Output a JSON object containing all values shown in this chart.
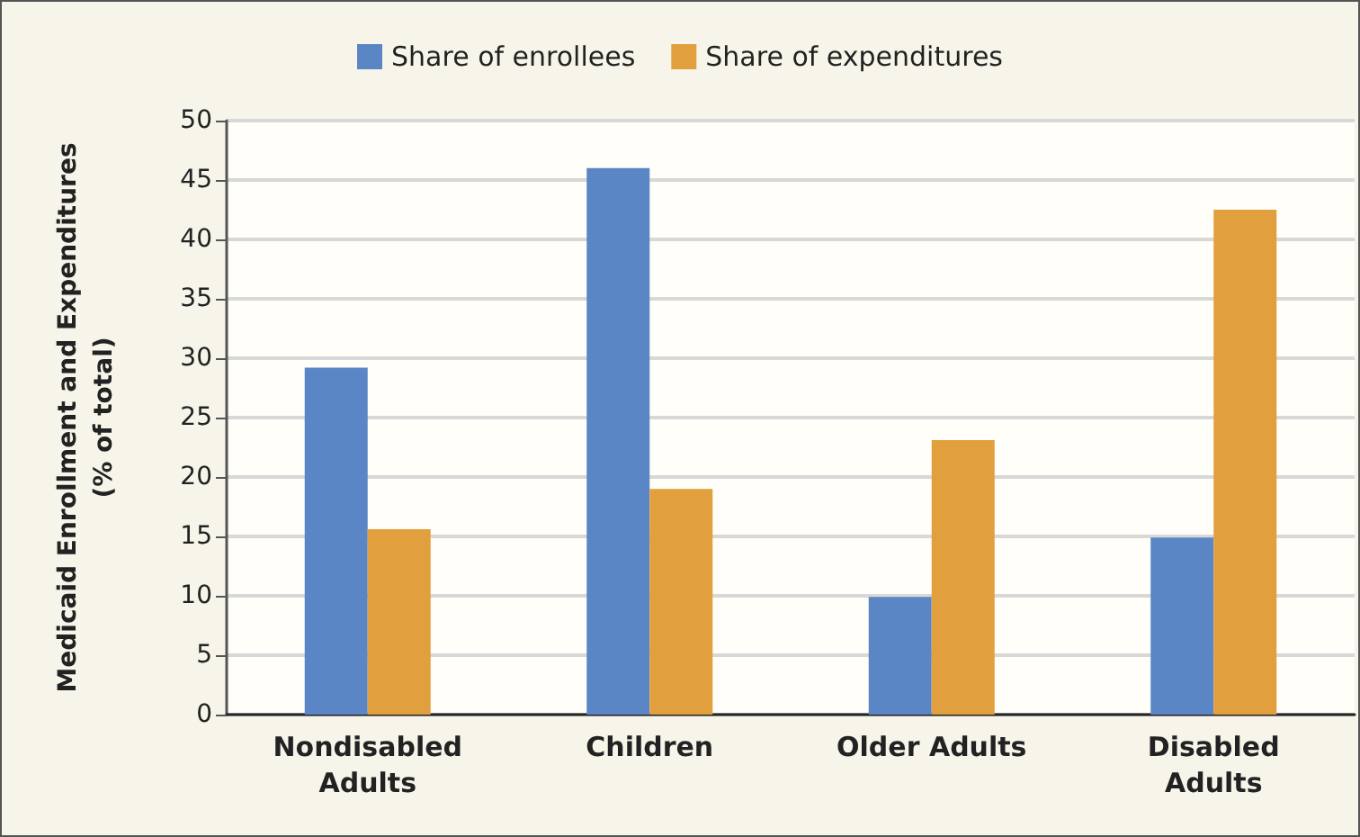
{
  "chart_data": {
    "type": "bar",
    "ylabel": "Medicaid Enrollment and Expenditures\n(% of total)",
    "categories": [
      "Nondisabled\nAdults",
      "Children",
      "Older Adults",
      "Disabled\nAdults"
    ],
    "series": [
      {
        "name": "Share of enrollees",
        "color": "#5b86c5",
        "values": [
          29.2,
          46.0,
          9.9,
          14.9
        ]
      },
      {
        "name": "Share of expenditures",
        "color": "#e29f3e",
        "values": [
          15.6,
          19.0,
          23.1,
          42.5
        ]
      }
    ],
    "ylim": [
      0,
      50
    ],
    "yticks": [
      0,
      5,
      10,
      15,
      20,
      25,
      30,
      35,
      40,
      45,
      50
    ],
    "grid": "y",
    "legend": "top"
  }
}
